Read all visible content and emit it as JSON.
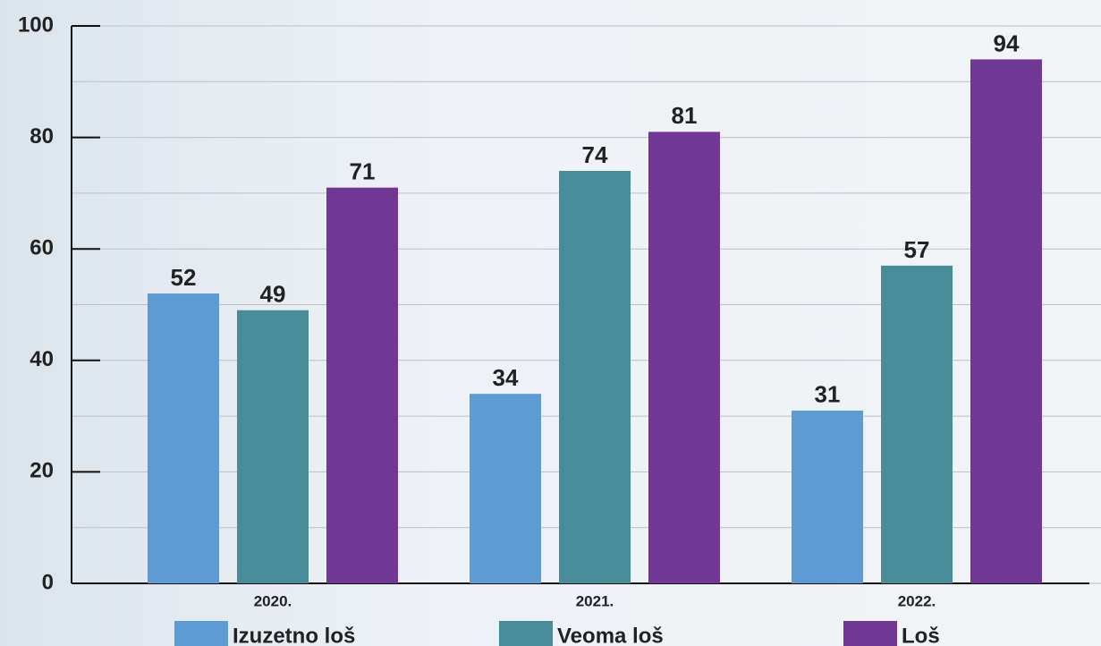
{
  "chart_data": {
    "type": "bar",
    "categories": [
      "2020.",
      "2021.",
      "2022."
    ],
    "series": [
      {
        "name": "Izuzetno loš",
        "color": "#5e9bd3",
        "values": [
          52,
          34,
          31
        ]
      },
      {
        "name": "Veoma loš",
        "color": "#478c96",
        "values": [
          49,
          74,
          57
        ]
      },
      {
        "name": "Loš",
        "color": "#713794",
        "values": [
          71,
          81,
          94
        ]
      }
    ],
    "ylim": [
      0,
      100
    ],
    "yticks": [
      0,
      20,
      40,
      60,
      80,
      100
    ],
    "minor_yticks": [
      10,
      30,
      50,
      70,
      90
    ],
    "grid": true,
    "legend": "bottom"
  }
}
